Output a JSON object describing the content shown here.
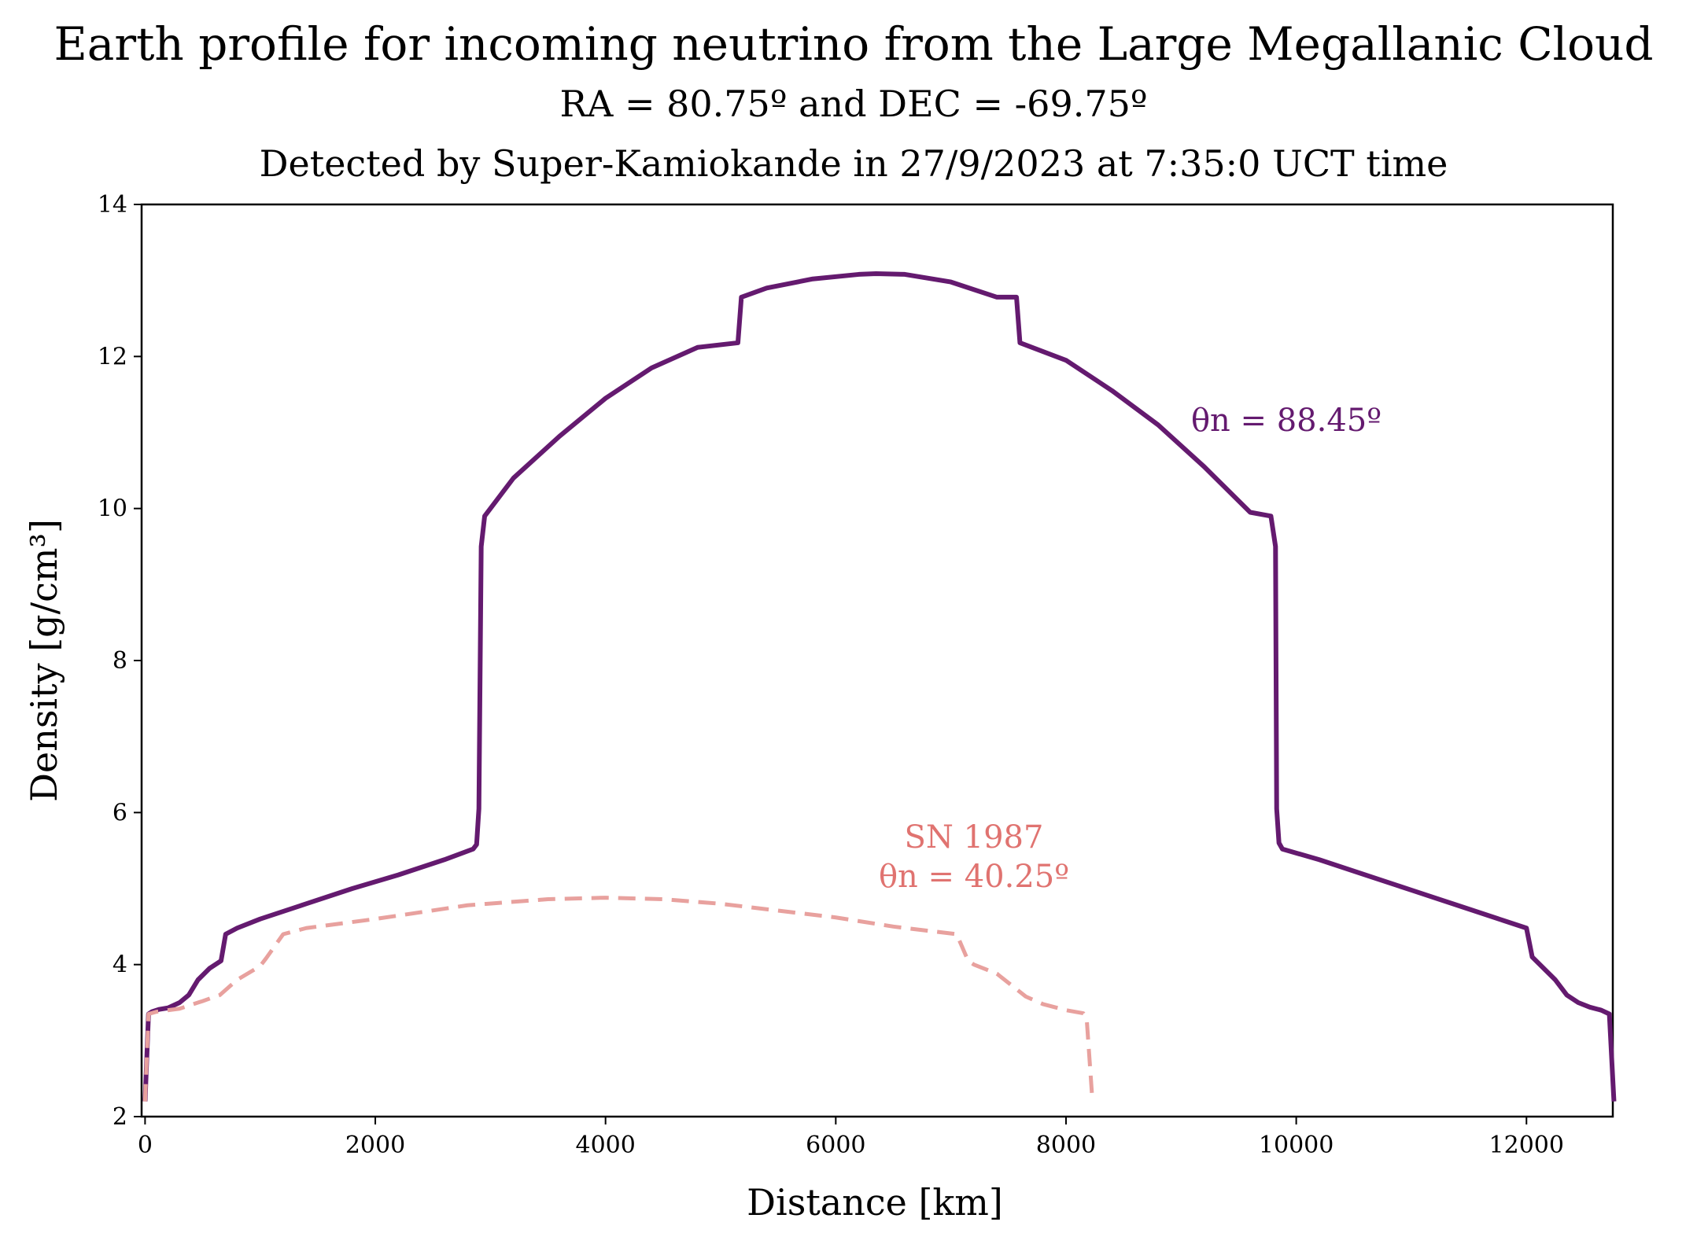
{
  "chart_data": {
    "type": "line",
    "title": "Earth profile for incoming neutrino from the Large Megallanic Cloud",
    "subtitle_lines": [
      "RA = 80.75º and DEC = -69.75º",
      "Detected by Super-Kamiokande in 27/9/2023 at 7:35:0 UCT time"
    ],
    "xlabel": "Distance [km]",
    "ylabel": "Density [g/cm³]",
    "xlim": [
      -30,
      12750
    ],
    "ylim": [
      2,
      14
    ],
    "xticks": [
      0,
      2000,
      4000,
      6000,
      8000,
      10000,
      12000
    ],
    "yticks": [
      2,
      4,
      6,
      8,
      10,
      12,
      14
    ],
    "xtick_labels": [
      "0",
      "2000",
      "4000",
      "6000",
      "8000",
      "10000",
      "12000"
    ],
    "ytick_labels": [
      "2",
      "4",
      "6",
      "8",
      "10",
      "12",
      "14"
    ],
    "grid": false,
    "legend": "none",
    "series": [
      {
        "color": "#641a6f",
        "style": "solid",
        "x": [
          0,
          30,
          60,
          120,
          200,
          300,
          380,
          460,
          560,
          660,
          700,
          800,
          1000,
          1400,
          1800,
          2200,
          2600,
          2850,
          2880,
          2900,
          2920,
          2950,
          3200,
          3600,
          4000,
          4400,
          4800,
          5150,
          5180,
          5400,
          5800,
          6200,
          6350,
          6600,
          7000,
          7400,
          7570,
          7600,
          8000,
          8400,
          8800,
          9200,
          9600,
          9780,
          9820,
          9830,
          9850,
          9880,
          10200,
          10600,
          11000,
          11400,
          11800,
          12000,
          12050,
          12150,
          12250,
          12350,
          12450,
          12550,
          12650,
          12720,
          12760
        ],
        "values": [
          2.2,
          3.35,
          3.38,
          3.41,
          3.43,
          3.5,
          3.6,
          3.8,
          3.95,
          4.05,
          4.4,
          4.48,
          4.6,
          4.8,
          5.0,
          5.18,
          5.38,
          5.52,
          5.58,
          6.05,
          9.5,
          9.9,
          10.4,
          10.95,
          11.45,
          11.85,
          12.12,
          12.18,
          12.78,
          12.9,
          13.02,
          13.08,
          13.09,
          13.08,
          12.98,
          12.78,
          12.78,
          12.18,
          11.95,
          11.55,
          11.1,
          10.55,
          9.95,
          9.9,
          9.5,
          6.05,
          5.6,
          5.52,
          5.38,
          5.18,
          4.98,
          4.78,
          4.58,
          4.48,
          4.1,
          3.95,
          3.8,
          3.6,
          3.5,
          3.44,
          3.4,
          3.35,
          2.2
        ]
      },
      {
        "color": "#e8a19e",
        "style": "dashed",
        "x": [
          0,
          30,
          100,
          300,
          500,
          650,
          800,
          1000,
          1050,
          1200,
          1400,
          2000,
          2800,
          3500,
          4000,
          4500,
          5000,
          6000,
          6500,
          7050,
          7150,
          7200,
          7400,
          7550,
          7650,
          7800,
          8000,
          8150,
          8180,
          8230
        ],
        "values": [
          2.2,
          3.35,
          3.38,
          3.42,
          3.52,
          3.6,
          3.8,
          3.98,
          4.08,
          4.4,
          4.48,
          4.6,
          4.78,
          4.86,
          4.88,
          4.86,
          4.8,
          4.62,
          4.5,
          4.4,
          4.05,
          4.0,
          3.88,
          3.7,
          3.58,
          3.48,
          3.4,
          3.36,
          3.28,
          2.2
        ]
      }
    ],
    "annotations": [
      {
        "lines": [
          "θn = 88.45º"
        ],
        "color": "#641a6f"
      },
      {
        "lines": [
          "SN 1987",
          "θn = 40.25º"
        ],
        "color": "#e07370"
      }
    ]
  }
}
